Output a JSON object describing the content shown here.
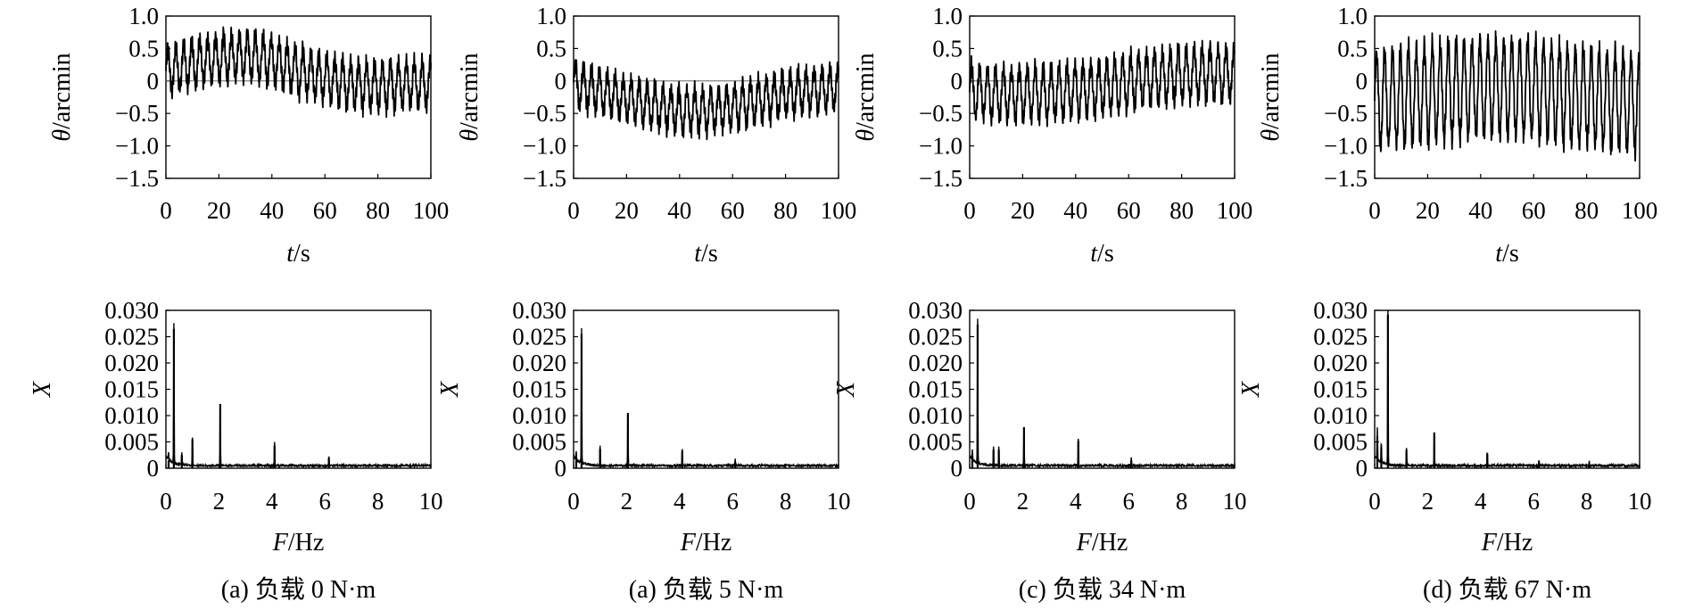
{
  "figure": {
    "panels": [
      {
        "caption": "(a) 负载 0 N·m"
      },
      {
        "caption": "(a) 负载 5 N·m"
      },
      {
        "caption": "(c) 负载 34 N·m"
      },
      {
        "caption": "(d) 负载 67 N·m"
      }
    ]
  },
  "chart_data": [
    {
      "type": "line",
      "panel": 0,
      "row": "time",
      "xlabel_var": "t",
      "xlabel_unit": "/s",
      "ylabel_var": "θ",
      "ylabel_unit": "/arcmin",
      "xlim": [
        0,
        100
      ],
      "ylim": [
        -1.5,
        1.0
      ],
      "xticks": [
        "0",
        "20",
        "40",
        "60",
        "80",
        "100"
      ],
      "yticks": [
        "−1.5",
        "−1.0",
        "−0.5",
        "0",
        "0.5",
        "1.0"
      ],
      "zero_line": true,
      "grid": false,
      "series": [
        {
          "x": [
            0,
            10,
            20,
            30,
            40,
            50,
            60,
            70,
            80,
            90,
            100
          ],
          "y": [
            0.15,
            0.28,
            0.35,
            0.4,
            0.32,
            0.15,
            0.05,
            -0.05,
            -0.08,
            -0.05,
            -0.05
          ],
          "osc_amp": 0.33,
          "osc_period_s": 3.0
        }
      ]
    },
    {
      "type": "line",
      "panel": 1,
      "row": "time",
      "xlabel_var": "t",
      "xlabel_unit": "/s",
      "ylabel_var": "θ",
      "ylabel_unit": "/arcmin",
      "xlim": [
        0,
        100
      ],
      "ylim": [
        -1.5,
        1.0
      ],
      "xticks": [
        "0",
        "20",
        "40",
        "60",
        "80",
        "100"
      ],
      "yticks": [
        "−1.5",
        "−1.0",
        "−0.5",
        "0",
        "0.5",
        "1.0"
      ],
      "zero_line": true,
      "grid": false,
      "series": [
        {
          "x": [
            0,
            10,
            20,
            30,
            40,
            50,
            60,
            70,
            80,
            90,
            100
          ],
          "y": [
            -0.05,
            -0.15,
            -0.28,
            -0.38,
            -0.45,
            -0.45,
            -0.4,
            -0.3,
            -0.2,
            -0.15,
            -0.1
          ],
          "osc_amp": 0.3,
          "osc_period_s": 3.0
        }
      ]
    },
    {
      "type": "line",
      "panel": 2,
      "row": "time",
      "xlabel_var": "t",
      "xlabel_unit": "/s",
      "ylabel_var": "θ",
      "ylabel_unit": "/arcmin",
      "xlim": [
        0,
        100
      ],
      "ylim": [
        -1.5,
        1.0
      ],
      "xticks": [
        "0",
        "20",
        "40",
        "60",
        "80",
        "100"
      ],
      "yticks": [
        "−1.5",
        "−1.0",
        "−0.5",
        "0",
        "0.5",
        "1.0"
      ],
      "zero_line": true,
      "grid": false,
      "series": [
        {
          "x": [
            0,
            10,
            20,
            30,
            40,
            50,
            60,
            70,
            80,
            90,
            100
          ],
          "y": [
            -0.15,
            -0.2,
            -0.2,
            -0.18,
            -0.15,
            -0.1,
            -0.02,
            0.05,
            0.1,
            0.12,
            0.1
          ],
          "osc_amp": 0.38,
          "osc_period_s": 3.0
        }
      ]
    },
    {
      "type": "line",
      "panel": 3,
      "row": "time",
      "xlabel_var": "t",
      "xlabel_unit": "/s",
      "ylabel_var": "θ",
      "ylabel_unit": "/arcmin",
      "xlim": [
        0,
        100
      ],
      "ylim": [
        -1.5,
        1.0
      ],
      "xticks": [
        "0",
        "20",
        "40",
        "60",
        "80",
        "100"
      ],
      "yticks": [
        "−1.5",
        "−1.0",
        "−0.5",
        "0",
        "0.5",
        "1.0"
      ],
      "zero_line": true,
      "grid": false,
      "series": [
        {
          "x": [
            0,
            10,
            20,
            30,
            40,
            50,
            60,
            70,
            80,
            90,
            100
          ],
          "y": [
            -0.3,
            -0.25,
            -0.2,
            -0.15,
            -0.1,
            -0.1,
            -0.12,
            -0.18,
            -0.25,
            -0.3,
            -0.35
          ],
          "osc_amp": 0.72,
          "osc_period_s": 3.0
        }
      ]
    },
    {
      "type": "line",
      "panel": 0,
      "row": "spectrum",
      "xlabel_var": "F",
      "xlabel_unit": "/Hz",
      "ylabel_var": "X",
      "ylabel_unit": "",
      "xlim": [
        0,
        10
      ],
      "ylim": [
        0,
        0.03
      ],
      "xticks": [
        "0",
        "2",
        "4",
        "6",
        "8",
        "10"
      ],
      "yticks": [
        "0",
        "0.005",
        "0.010",
        "0.015",
        "0.020",
        "0.025",
        "0.030"
      ],
      "grid": false,
      "peaks": [
        {
          "f": 0.3,
          "amp": 0.0265
        },
        {
          "f": 0.1,
          "amp": 0.0015
        },
        {
          "f": 0.6,
          "amp": 0.0025
        },
        {
          "f": 1.0,
          "amp": 0.0055
        },
        {
          "f": 2.05,
          "amp": 0.0122
        },
        {
          "f": 4.1,
          "amp": 0.0043
        },
        {
          "f": 6.15,
          "amp": 0.0019
        }
      ]
    },
    {
      "type": "line",
      "panel": 1,
      "row": "spectrum",
      "xlabel_var": "F",
      "xlabel_unit": "/Hz",
      "ylabel_var": "X",
      "ylabel_unit": "",
      "xlim": [
        0,
        10
      ],
      "ylim": [
        0,
        0.03
      ],
      "xticks": [
        "0",
        "2",
        "4",
        "6",
        "8",
        "10"
      ],
      "yticks": [
        "0",
        "0.005",
        "0.010",
        "0.015",
        "0.020",
        "0.025",
        "0.030"
      ],
      "grid": false,
      "peaks": [
        {
          "f": 0.3,
          "amp": 0.0255
        },
        {
          "f": 0.1,
          "amp": 0.0015
        },
        {
          "f": 1.0,
          "amp": 0.0037
        },
        {
          "f": 2.05,
          "amp": 0.0105
        },
        {
          "f": 4.1,
          "amp": 0.0033
        },
        {
          "f": 6.1,
          "amp": 0.0012
        }
      ]
    },
    {
      "type": "line",
      "panel": 2,
      "row": "spectrum",
      "xlabel_var": "F",
      "xlabel_unit": "/Hz",
      "ylabel_var": "X",
      "ylabel_unit": "",
      "xlim": [
        0,
        10
      ],
      "ylim": [
        0,
        0.03
      ],
      "xticks": [
        "0",
        "2",
        "4",
        "6",
        "8",
        "10"
      ],
      "yticks": [
        "0",
        "0.005",
        "0.010",
        "0.015",
        "0.020",
        "0.025",
        "0.030"
      ],
      "grid": false,
      "peaks": [
        {
          "f": 0.3,
          "amp": 0.0273
        },
        {
          "f": 0.1,
          "amp": 0.002
        },
        {
          "f": 0.9,
          "amp": 0.0035
        },
        {
          "f": 1.1,
          "amp": 0.0035
        },
        {
          "f": 2.05,
          "amp": 0.0078
        },
        {
          "f": 4.1,
          "amp": 0.0052
        },
        {
          "f": 6.1,
          "amp": 0.0015
        }
      ]
    },
    {
      "type": "line",
      "panel": 3,
      "row": "spectrum",
      "xlabel_var": "F",
      "xlabel_unit": "/Hz",
      "ylabel_var": "X",
      "ylabel_unit": "",
      "xlim": [
        0,
        10
      ],
      "ylim": [
        0,
        0.03
      ],
      "xticks": [
        "0",
        "2",
        "4",
        "6",
        "8",
        "10"
      ],
      "yticks": [
        "0",
        "0.005",
        "0.010",
        "0.015",
        "0.020",
        "0.025",
        "0.030"
      ],
      "grid": false,
      "peaks": [
        {
          "f": 0.5,
          "amp": 0.0292
        },
        {
          "f": 0.1,
          "amp": 0.006
        },
        {
          "f": 0.25,
          "amp": 0.004
        },
        {
          "f": 1.2,
          "amp": 0.0035
        },
        {
          "f": 2.25,
          "amp": 0.0068
        },
        {
          "f": 4.25,
          "amp": 0.0028
        },
        {
          "f": 6.2,
          "amp": 0.0012
        },
        {
          "f": 8.1,
          "amp": 0.0008
        }
      ]
    }
  ]
}
